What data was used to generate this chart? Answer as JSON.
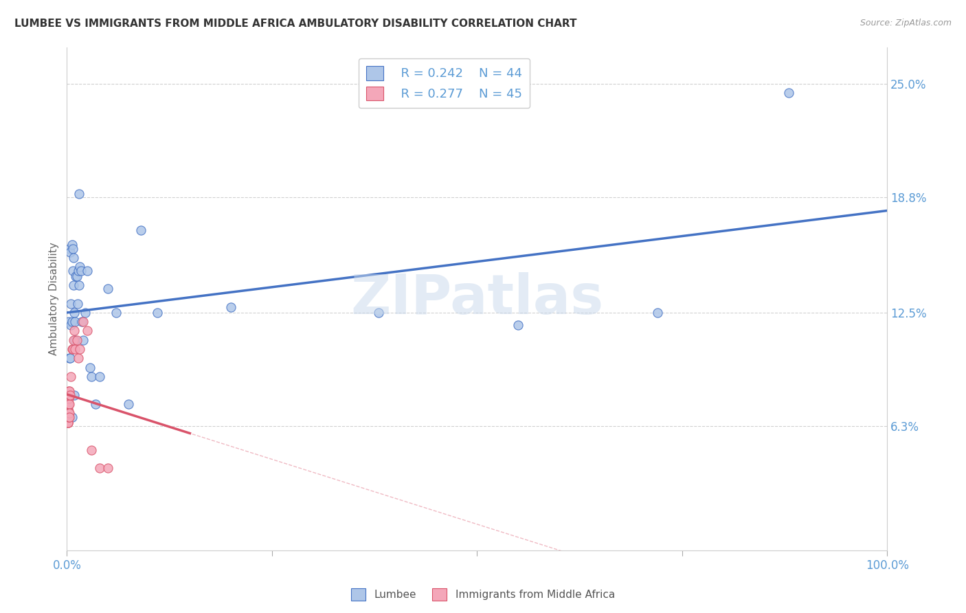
{
  "title": "LUMBEE VS IMMIGRANTS FROM MIDDLE AFRICA AMBULATORY DISABILITY CORRELATION CHART",
  "source": "Source: ZipAtlas.com",
  "ylabel": "Ambulatory Disability",
  "ytick_labels": [
    "6.3%",
    "12.5%",
    "18.8%",
    "25.0%"
  ],
  "ytick_values": [
    0.063,
    0.125,
    0.188,
    0.25
  ],
  "xlim": [
    0.0,
    1.0
  ],
  "ylim": [
    -0.005,
    0.27
  ],
  "legend_labels": [
    "Lumbee",
    "Immigrants from Middle Africa"
  ],
  "legend_r": [
    "R = 0.242",
    "N = 44"
  ],
  "legend_n": [
    "R = 0.277",
    "N = 45"
  ],
  "color_blue": "#aec6e8",
  "color_pink": "#f4a7b9",
  "color_blue_dark": "#4472c4",
  "color_pink_dark": "#d9536a",
  "color_blue_text": "#5b9bd5",
  "background_color": "#ffffff",
  "watermark": "ZIPatlas",
  "grid_color": "#d0d0d0",
  "lumbee_x": [
    0.002,
    0.003,
    0.004,
    0.005,
    0.005,
    0.006,
    0.006,
    0.007,
    0.007,
    0.008,
    0.008,
    0.009,
    0.01,
    0.01,
    0.011,
    0.012,
    0.013,
    0.014,
    0.015,
    0.016,
    0.017,
    0.018,
    0.02,
    0.022,
    0.025,
    0.028,
    0.03,
    0.035,
    0.04,
    0.05,
    0.06,
    0.075,
    0.09,
    0.11,
    0.2,
    0.38,
    0.55,
    0.72,
    0.88,
    0.003,
    0.004,
    0.006,
    0.009,
    0.015
  ],
  "lumbee_y": [
    0.12,
    0.16,
    0.158,
    0.118,
    0.13,
    0.162,
    0.12,
    0.16,
    0.148,
    0.155,
    0.14,
    0.125,
    0.12,
    0.11,
    0.145,
    0.145,
    0.13,
    0.148,
    0.14,
    0.15,
    0.148,
    0.12,
    0.11,
    0.125,
    0.148,
    0.095,
    0.09,
    0.075,
    0.09,
    0.138,
    0.125,
    0.075,
    0.17,
    0.125,
    0.128,
    0.125,
    0.118,
    0.125,
    0.245,
    0.1,
    0.1,
    0.068,
    0.08,
    0.19
  ],
  "immigrants_x": [
    0.001,
    0.001,
    0.001,
    0.001,
    0.001,
    0.001,
    0.001,
    0.001,
    0.001,
    0.001,
    0.001,
    0.001,
    0.001,
    0.001,
    0.001,
    0.001,
    0.001,
    0.001,
    0.001,
    0.001,
    0.002,
    0.002,
    0.002,
    0.002,
    0.002,
    0.003,
    0.003,
    0.003,
    0.003,
    0.003,
    0.004,
    0.005,
    0.006,
    0.007,
    0.008,
    0.009,
    0.01,
    0.012,
    0.014,
    0.016,
    0.02,
    0.025,
    0.03,
    0.04,
    0.05
  ],
  "immigrants_y": [
    0.075,
    0.078,
    0.072,
    0.07,
    0.068,
    0.075,
    0.072,
    0.078,
    0.065,
    0.07,
    0.075,
    0.068,
    0.078,
    0.065,
    0.07,
    0.075,
    0.068,
    0.078,
    0.065,
    0.07,
    0.075,
    0.078,
    0.082,
    0.07,
    0.068,
    0.08,
    0.075,
    0.082,
    0.07,
    0.068,
    0.08,
    0.09,
    0.105,
    0.105,
    0.11,
    0.115,
    0.105,
    0.11,
    0.1,
    0.105,
    0.12,
    0.115,
    0.05,
    0.04,
    0.04
  ]
}
